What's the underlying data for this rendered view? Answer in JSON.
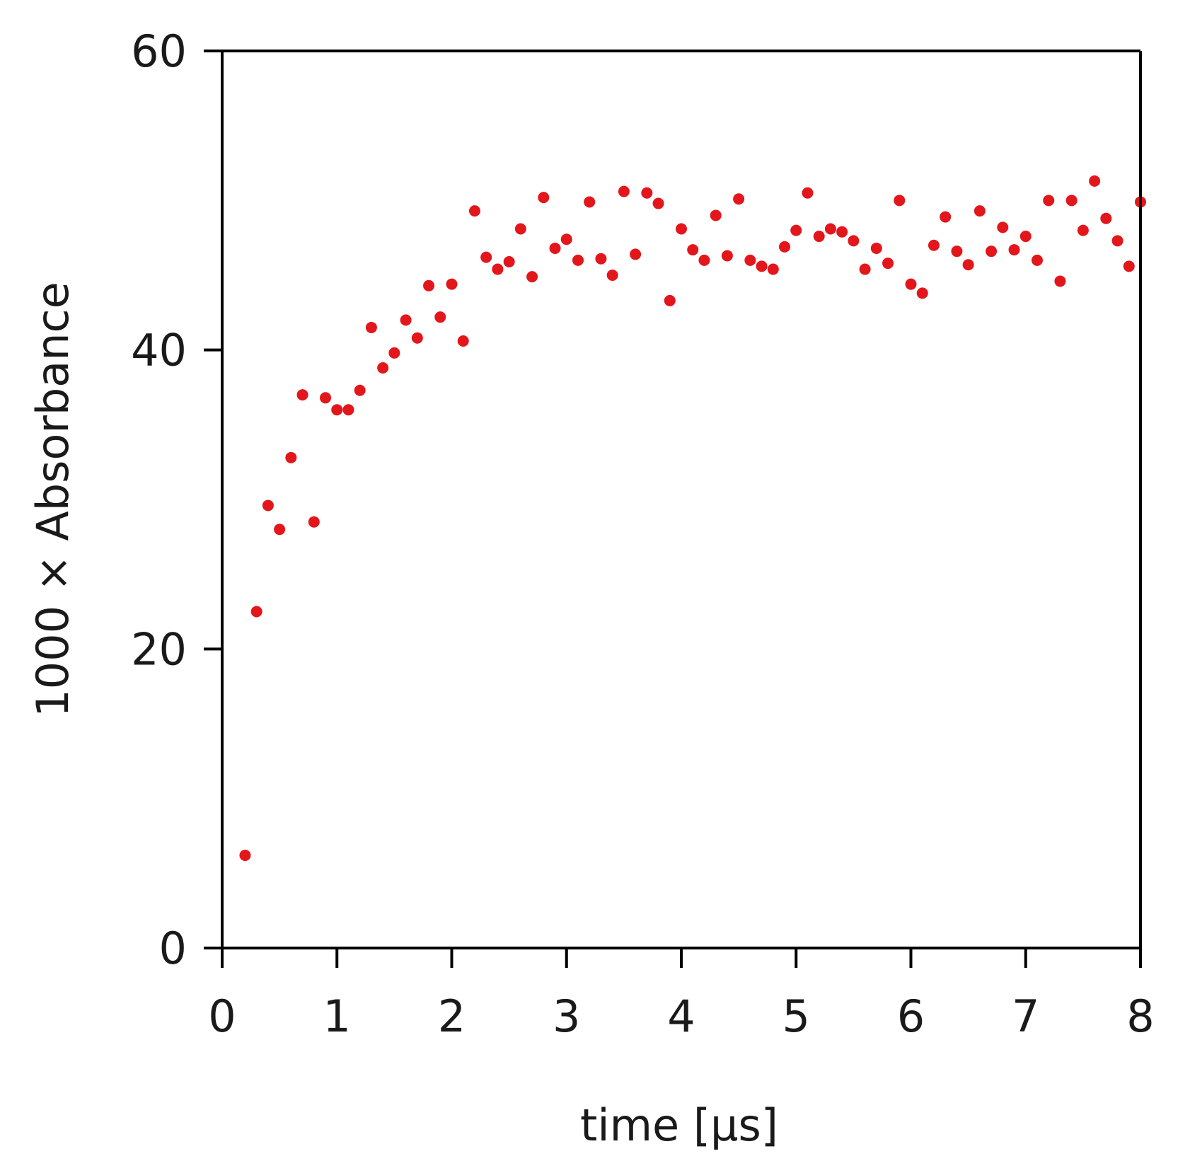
{
  "chart_data": {
    "type": "scatter",
    "title": "",
    "xlabel": "time [µs]",
    "ylabel": "1000 × Absorbance",
    "xlim": [
      0,
      8
    ],
    "ylim": [
      0,
      60
    ],
    "xticks": [
      0,
      1,
      2,
      3,
      4,
      5,
      6,
      7,
      8
    ],
    "yticks": [
      0,
      20,
      40,
      60
    ],
    "grid": false,
    "legend": "none",
    "colors": {
      "marker": "#e3161c",
      "axis": "#000000"
    },
    "series": [
      {
        "x": [
          0.2,
          0.3,
          0.4,
          0.5,
          0.6,
          0.7,
          0.8,
          0.9,
          1.0,
          1.1,
          1.2,
          1.3,
          1.4,
          1.5,
          1.6,
          1.7,
          1.8,
          1.9,
          2.0,
          2.1,
          2.2,
          2.3,
          2.4,
          2.5,
          2.6,
          2.7,
          2.8,
          2.9,
          3.0,
          3.1,
          3.2,
          3.3,
          3.4,
          3.5,
          3.6,
          3.7,
          3.8,
          3.9,
          4.0,
          4.1,
          4.2,
          4.3,
          4.4,
          4.5,
          4.6,
          4.7,
          4.8,
          4.9,
          5.0,
          5.1,
          5.2,
          5.3,
          5.4,
          5.5,
          5.6,
          5.7,
          5.8,
          5.9,
          6.0,
          6.1,
          6.2,
          6.3,
          6.4,
          6.5,
          6.6,
          6.7,
          6.8,
          6.9,
          7.0,
          7.1,
          7.2,
          7.3,
          7.4,
          7.5,
          7.6,
          7.7,
          7.8,
          7.9,
          8.0
        ],
        "y": [
          6.2,
          22.5,
          29.6,
          28.0,
          32.8,
          37.0,
          28.5,
          36.8,
          36.0,
          36.0,
          37.3,
          41.5,
          38.8,
          39.8,
          42.0,
          40.8,
          44.3,
          42.2,
          44.4,
          40.6,
          49.3,
          46.2,
          45.4,
          45.9,
          48.1,
          44.9,
          50.2,
          46.8,
          47.4,
          46.0,
          49.9,
          46.1,
          45.0,
          50.6,
          46.4,
          50.5,
          49.8,
          43.3,
          48.1,
          46.7,
          46.0,
          49.0,
          46.3,
          50.1,
          46.0,
          45.6,
          45.4,
          46.9,
          48.0,
          50.5,
          47.6,
          48.1,
          47.9,
          47.3,
          45.4,
          46.8,
          45.8,
          50.0,
          44.4,
          43.8,
          47.0,
          48.9,
          46.6,
          45.7,
          49.3,
          46.6,
          48.2,
          46.7,
          47.6,
          46.0,
          50.0,
          44.6,
          50.0,
          48.0,
          51.3,
          48.8,
          47.3,
          45.6,
          49.9
        ]
      }
    ]
  }
}
